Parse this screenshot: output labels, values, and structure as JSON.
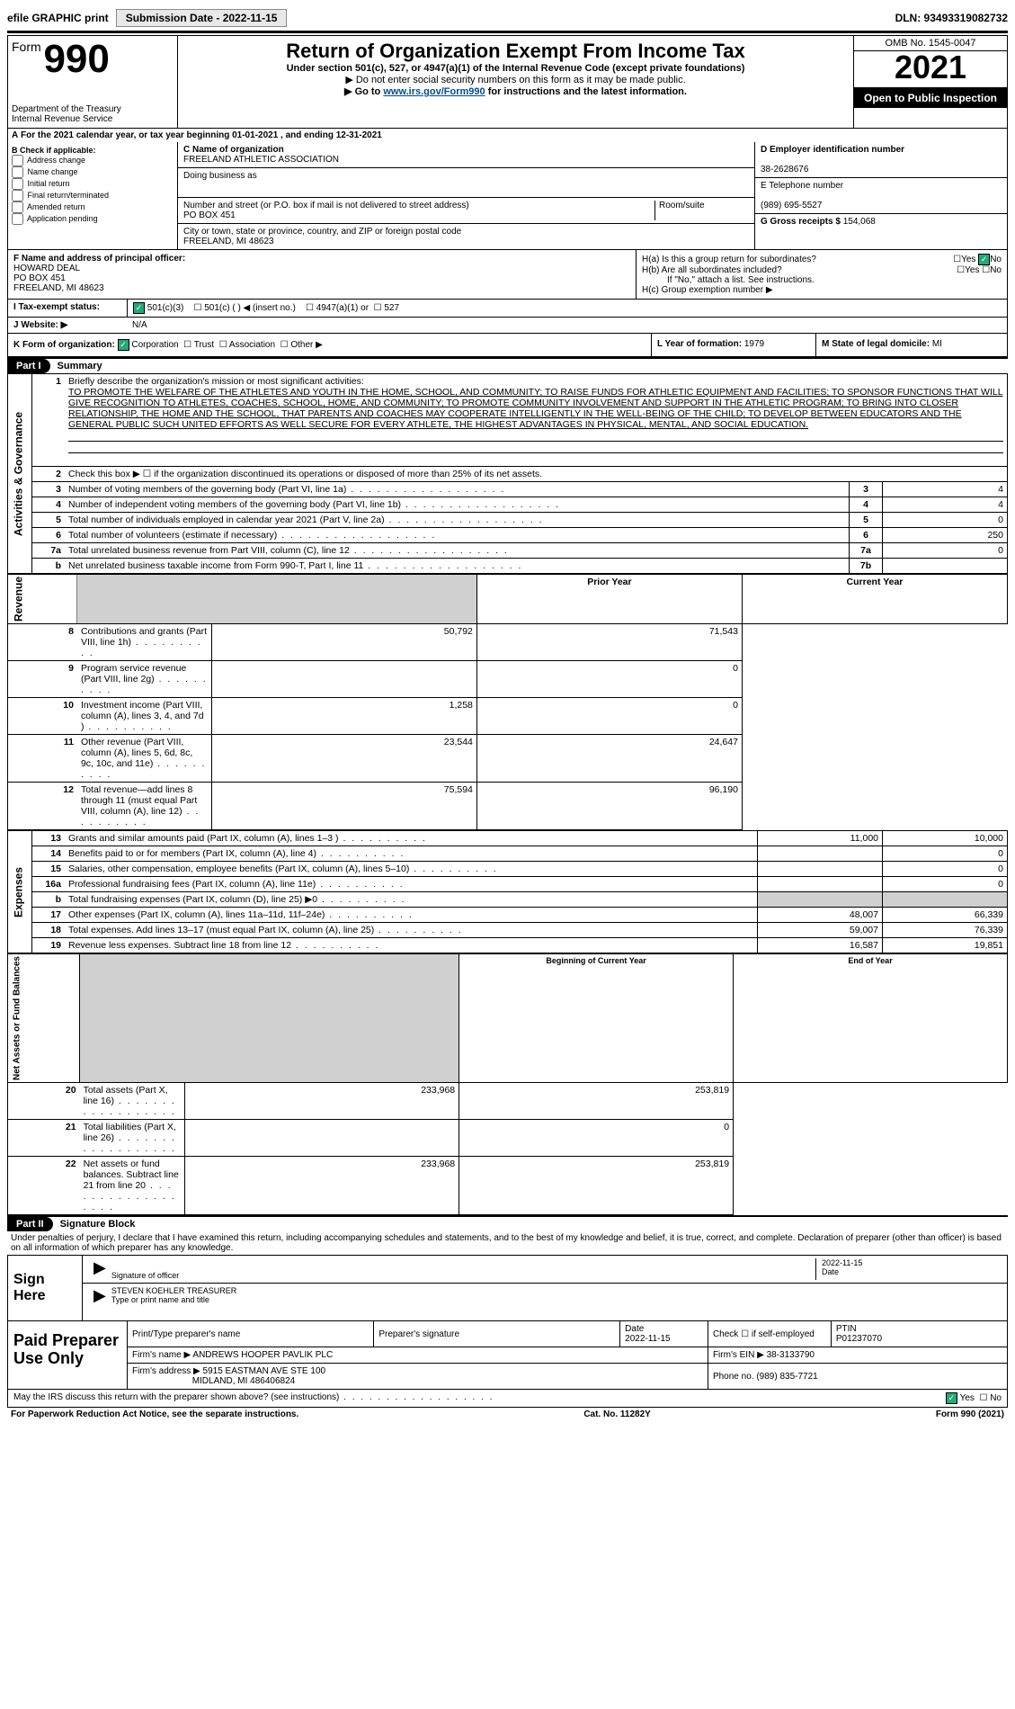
{
  "top": {
    "efile_label": "efile GRAPHIC print",
    "submission_label": "Submission Date - 2022-11-15",
    "dln_label": "DLN: 93493319082732"
  },
  "header": {
    "form_label": "Form",
    "form_num": "990",
    "dept": "Department of the Treasury",
    "irs": "Internal Revenue Service",
    "title": "Return of Organization Exempt From Income Tax",
    "sub1": "Under section 501(c), 527, or 4947(a)(1) of the Internal Revenue Code (except private foundations)",
    "sub2": "▶ Do not enter social security numbers on this form as it may be made public.",
    "sub3_pre": "▶ Go to ",
    "sub3_link": "www.irs.gov/Form990",
    "sub3_post": " for instructions and the latest information.",
    "omb": "OMB No. 1545-0047",
    "year": "2021",
    "open": "Open to Public Inspection"
  },
  "calyear": "For the 2021 calendar year, or tax year beginning 01-01-2021  , and ending 12-31-2021",
  "b": {
    "label": "B Check if applicable:",
    "addr": "Address change",
    "name": "Name change",
    "init": "Initial return",
    "final": "Final return/terminated",
    "amend": "Amended return",
    "app": "Application pending"
  },
  "c": {
    "label": "C Name of organization",
    "org": "FREELAND ATHLETIC ASSOCIATION",
    "dba_label": "Doing business as",
    "street_label": "Number and street (or P.O. box if mail is not delivered to street address)",
    "room_label": "Room/suite",
    "street": "PO BOX 451",
    "city_label": "City or town, state or province, country, and ZIP or foreign postal code",
    "city": "FREELAND, MI  48623"
  },
  "d": {
    "label": "D Employer identification number",
    "ein": "38-2628676",
    "e_label": "E Telephone number",
    "phone": "(989) 695-5527",
    "g_label": "G Gross receipts $",
    "gross": "154,068"
  },
  "f": {
    "label": "F Name and address of principal officer:",
    "name": "HOWARD DEAL",
    "addr1": "PO BOX 451",
    "addr2": "FREELAND, MI  48623"
  },
  "h": {
    "a_label": "H(a)  Is this a group return for subordinates?",
    "b_label": "H(b)  Are all subordinates included?",
    "b_note": "If \"No,\" attach a list. See instructions.",
    "c_label": "H(c)  Group exemption number ▶",
    "yes": "Yes",
    "no": "No"
  },
  "i": {
    "label": "I  Tax-exempt status:",
    "c3": "501(c)(3)",
    "c": "501(c) (  ) ◀ (insert no.)",
    "a1": "4947(a)(1) or",
    "s527": "527"
  },
  "j": {
    "label": "J  Website: ▶",
    "val": "N/A"
  },
  "k": {
    "label": "K Form of organization:",
    "corp": "Corporation",
    "trust": "Trust",
    "assoc": "Association",
    "other": "Other ▶"
  },
  "l": {
    "label": "L Year of formation:",
    "val": "1979"
  },
  "m": {
    "label": "M State of legal domicile:",
    "val": "MI"
  },
  "part1": {
    "header": "Part I",
    "sub": "Summary",
    "q1": "Briefly describe the organization's mission or most significant activities:",
    "mission": "TO PROMOTE THE WELFARE OF THE ATHLETES AND YOUTH IN THE HOME, SCHOOL, AND COMMUNITY; TO RAISE FUNDS FOR ATHLETIC EQUIPMENT AND FACILITIES; TO SPONSOR FUNCTIONS THAT WILL GIVE RECOGNITION TO ATHLETES, COACHES, SCHOOL, HOME, AND COMMUNITY; TO PROMOTE COMMUNITY INVOLVEMENT AND SUPPORT IN THE ATHLETIC PROGRAM; TO BRING INTO CLOSER RELATIONSHIP, THE HOME AND THE SCHOOL, THAT PARENTS AND COACHES MAY COOPERATE INTELLIGENTLY IN THE WELL-BEING OF THE CHILD; TO DEVELOP BETWEEN EDUCATORS AND THE GENERAL PUBLIC SUCH UNITED EFFORTS AS WELL SECURE FOR EVERY ATHLETE, THE HIGHEST ADVANTAGES IN PHYSICAL, MENTAL, AND SOCIAL EDUCATION.",
    "q2": "Check this box ▶ ☐ if the organization discontinued its operations or disposed of more than 25% of its net assets.",
    "q3": "Number of voting members of the governing body (Part VI, line 1a)",
    "q4": "Number of independent voting members of the governing body (Part VI, line 1b)",
    "q5": "Total number of individuals employed in calendar year 2021 (Part V, line 2a)",
    "q6": "Total number of volunteers (estimate if necessary)",
    "q7a": "Total unrelated business revenue from Part VIII, column (C), line 12",
    "q7b": "Net unrelated business taxable income from Form 990-T, Part I, line 11",
    "v3": "4",
    "v4": "4",
    "v5": "0",
    "v6": "250",
    "v7a": "0",
    "v7b": "",
    "side1": "Activities & Governance"
  },
  "revenue": {
    "side": "Revenue",
    "h_prior": "Prior Year",
    "h_curr": "Current Year",
    "r": [
      {
        "n": "8",
        "t": "Contributions and grants (Part VIII, line 1h)",
        "p": "50,792",
        "c": "71,543"
      },
      {
        "n": "9",
        "t": "Program service revenue (Part VIII, line 2g)",
        "p": "",
        "c": "0"
      },
      {
        "n": "10",
        "t": "Investment income (Part VIII, column (A), lines 3, 4, and 7d )",
        "p": "1,258",
        "c": "0"
      },
      {
        "n": "11",
        "t": "Other revenue (Part VIII, column (A), lines 5, 6d, 8c, 9c, 10c, and 11e)",
        "p": "23,544",
        "c": "24,647"
      },
      {
        "n": "12",
        "t": "Total revenue—add lines 8 through 11 (must equal Part VIII, column (A), line 12)",
        "p": "75,594",
        "c": "96,190"
      }
    ]
  },
  "expenses": {
    "side": "Expenses",
    "r": [
      {
        "n": "13",
        "t": "Grants and similar amounts paid (Part IX, column (A), lines 1–3 )",
        "p": "11,000",
        "c": "10,000"
      },
      {
        "n": "14",
        "t": "Benefits paid to or for members (Part IX, column (A), line 4)",
        "p": "",
        "c": "0"
      },
      {
        "n": "15",
        "t": "Salaries, other compensation, employee benefits (Part IX, column (A), lines 5–10)",
        "p": "",
        "c": "0"
      },
      {
        "n": "16a",
        "t": "Professional fundraising fees (Part IX, column (A), line 11e)",
        "p": "",
        "c": "0"
      },
      {
        "n": "b",
        "t": "Total fundraising expenses (Part IX, column (D), line 25) ▶0",
        "p": "GRAY",
        "c": "GRAY"
      },
      {
        "n": "17",
        "t": "Other expenses (Part IX, column (A), lines 11a–11d, 11f–24e)",
        "p": "48,007",
        "c": "66,339"
      },
      {
        "n": "18",
        "t": "Total expenses. Add lines 13–17 (must equal Part IX, column (A), line 25)",
        "p": "59,007",
        "c": "76,339"
      },
      {
        "n": "19",
        "t": "Revenue less expenses. Subtract line 18 from line 12",
        "p": "16,587",
        "c": "19,851"
      }
    ]
  },
  "netassets": {
    "side": "Net Assets or Fund Balances",
    "h_begin": "Beginning of Current Year",
    "h_end": "End of Year",
    "r": [
      {
        "n": "20",
        "t": "Total assets (Part X, line 16)",
        "p": "233,968",
        "c": "253,819"
      },
      {
        "n": "21",
        "t": "Total liabilities (Part X, line 26)",
        "p": "",
        "c": "0"
      },
      {
        "n": "22",
        "t": "Net assets or fund balances. Subtract line 21 from line 20",
        "p": "233,968",
        "c": "253,819"
      }
    ]
  },
  "part2": {
    "header": "Part II",
    "sub": "Signature Block",
    "decl": "Under penalties of perjury, I declare that I have examined this return, including accompanying schedules and statements, and to the best of my knowledge and belief, it is true, correct, and complete. Declaration of preparer (other than officer) is based on all information of which preparer has any knowledge.",
    "sign_here": "Sign Here",
    "sig_officer": "Signature of officer",
    "date_label": "Date",
    "date_val": "2022-11-15",
    "officer": "STEVEN KOEHLER  TREASURER",
    "type_print": "Type or print name and title"
  },
  "preparer": {
    "label": "Paid Preparer Use Only",
    "h1": "Print/Type preparer's name",
    "h2": "Preparer's signature",
    "h3": "Date",
    "h3v": "2022-11-15",
    "h4": "Check ☐ if self-employed",
    "h5": "PTIN",
    "ptin": "P01237070",
    "firm_name_l": "Firm's name    ▶",
    "firm_name": "ANDREWS HOOPER PAVLIK PLC",
    "firm_ein_l": "Firm's EIN ▶",
    "firm_ein": "38-3133790",
    "firm_addr_l": "Firm's address ▶",
    "firm_addr": "5915 EASTMAN AVE STE 100",
    "firm_addr2": "MIDLAND, MI  486406824",
    "phone_l": "Phone no.",
    "phone": "(989) 835-7721"
  },
  "discuss": {
    "q": "May the IRS discuss this return with the preparer shown above? (see instructions)",
    "yes": "Yes",
    "no": "No"
  },
  "footer": {
    "pra": "For Paperwork Reduction Act Notice, see the separate instructions.",
    "cat": "Cat. No. 11282Y",
    "form": "Form 990 (2021)"
  }
}
